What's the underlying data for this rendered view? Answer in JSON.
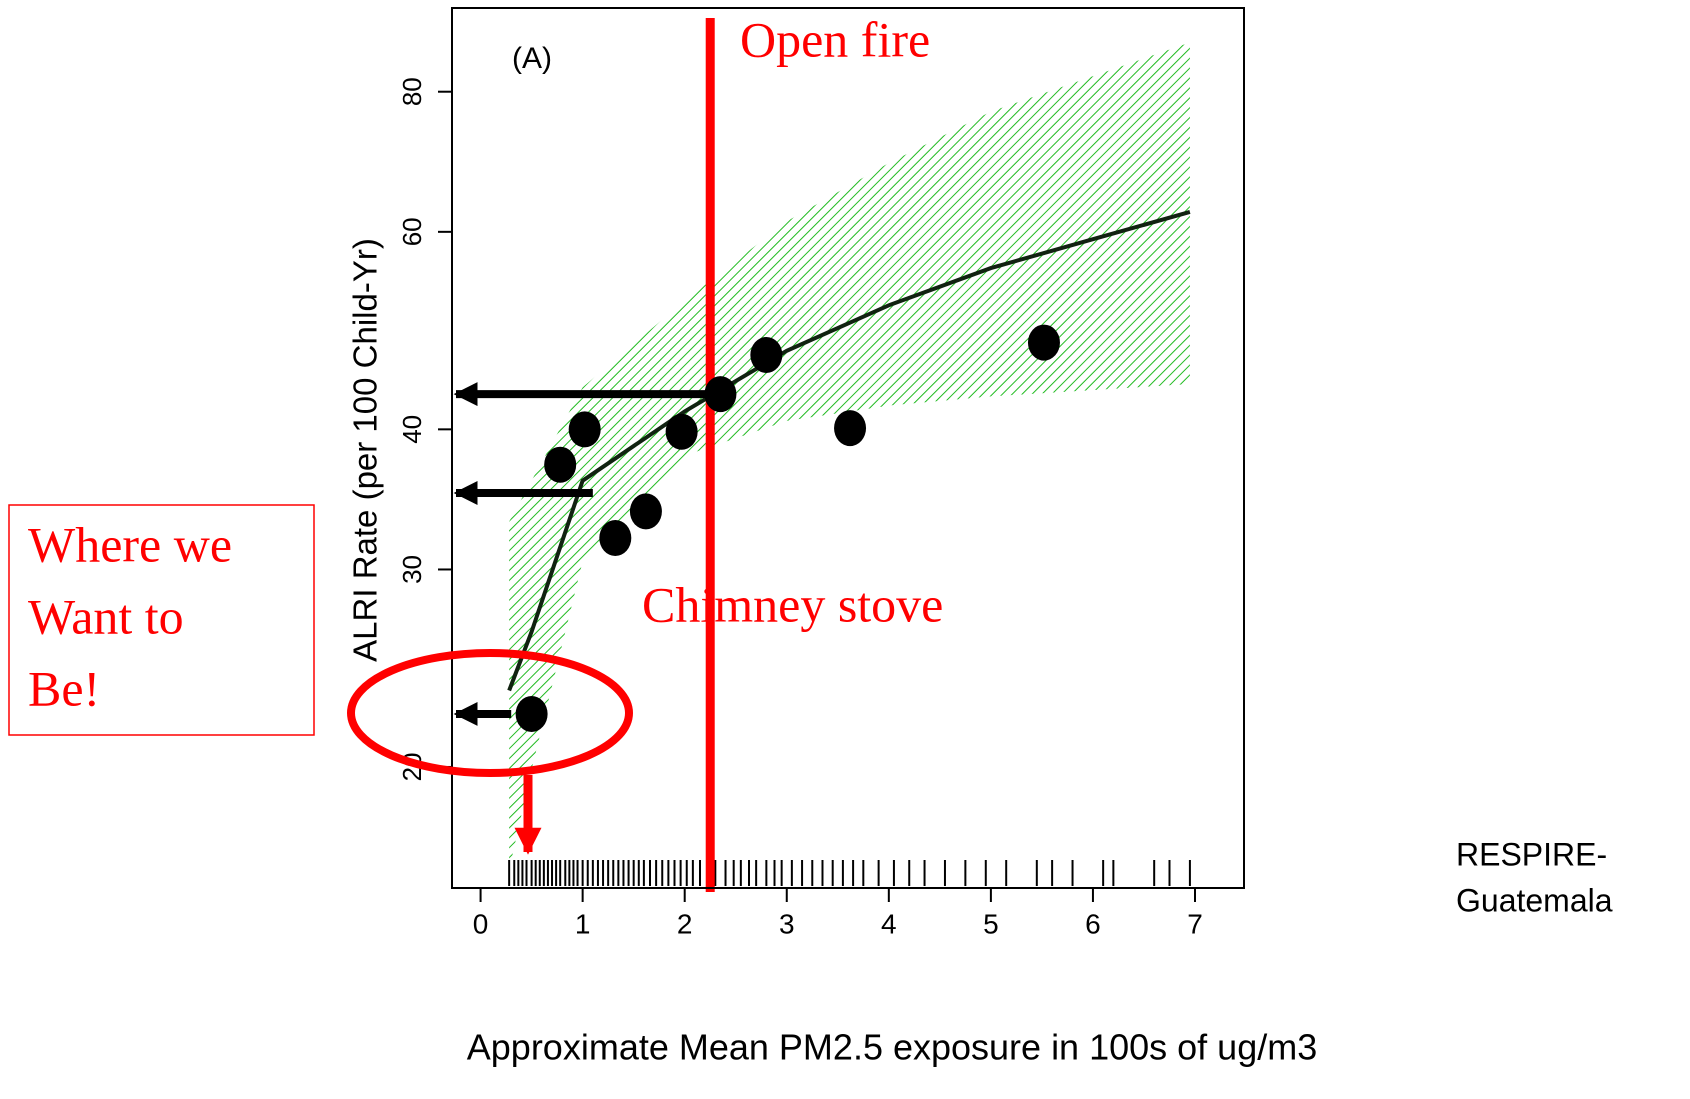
{
  "chart_data": {
    "type": "scatter",
    "panel_label": "(A)",
    "x_label": "Approximate Mean PM2.5 exposure in 100s of ug/m3",
    "y_label": "ALRI Rate (per 100 Child-Yr)",
    "y_log": true,
    "xlim": [
      -0.28,
      7.48
    ],
    "ylim": [
      15.6,
      95
    ],
    "xticks": [
      0,
      1,
      2,
      3,
      4,
      5,
      6,
      7
    ],
    "yticks": [
      20,
      30,
      40,
      60,
      80
    ],
    "point_color": "#000000",
    "x": [
      0.5,
      0.78,
      1.02,
      1.32,
      1.62,
      1.97,
      2.35,
      2.8,
      3.62,
      5.52
    ],
    "values": [
      22.3,
      37.2,
      40,
      32.0,
      33.8,
      39.8,
      43.0,
      46.6,
      40.1,
      47.8
    ],
    "curve_x": [
      0.28,
      0.5,
      1,
      2,
      3,
      4,
      5,
      6,
      6.95
    ],
    "curve_y": [
      23.4,
      26.4,
      36,
      41.5,
      47,
      51.6,
      55.7,
      59.1,
      62.5
    ],
    "band_x": [
      0.28,
      0.5,
      1,
      2,
      3,
      4,
      5,
      6.95
    ],
    "band_upper": [
      33.1,
      36,
      43.6,
      52.1,
      61.3,
      69.1,
      76.8,
      88.5
    ],
    "band_lower": [
      16.2,
      19.9,
      30.5,
      37.9,
      40.7,
      42,
      42.8,
      43.9
    ],
    "band_color": "#22bb22",
    "rug": [
      0.28,
      0.33,
      0.37,
      0.41,
      0.45,
      0.5,
      0.54,
      0.58,
      0.62,
      0.66,
      0.7,
      0.74,
      0.78,
      0.83,
      0.87,
      0.91,
      0.95,
      1.0,
      1.05,
      1.1,
      1.15,
      1.2,
      1.25,
      1.3,
      1.35,
      1.4,
      1.45,
      1.5,
      1.55,
      1.6,
      1.66,
      1.72,
      1.78,
      1.84,
      1.9,
      1.96,
      2.02,
      2.08,
      2.15,
      2.22,
      2.3,
      2.4,
      2.48,
      2.55,
      2.63,
      2.7,
      2.8,
      2.88,
      2.95,
      3.05,
      3.15,
      3.25,
      3.35,
      3.45,
      3.55,
      3.65,
      3.75,
      3.9,
      4.05,
      4.2,
      4.35,
      4.55,
      4.75,
      4.95,
      5.15,
      5.45,
      5.6,
      5.8,
      6.1,
      6.2,
      6.6,
      6.75,
      6.95
    ],
    "vline": {
      "x": 2.25,
      "color": "#ff0000"
    },
    "vline_labels": [
      "Open fire",
      "Chimney stove"
    ],
    "arrows": [
      {
        "from_x": 2.25,
        "y": 43.0
      },
      {
        "from_x": 1.1,
        "y": 35.1
      },
      {
        "from_x": 0.3,
        "y": 22.3
      }
    ],
    "callout": [
      "Where we",
      "Want to",
      "Be!"
    ],
    "source": [
      "RESPIRE-",
      "Guatemala"
    ]
  }
}
